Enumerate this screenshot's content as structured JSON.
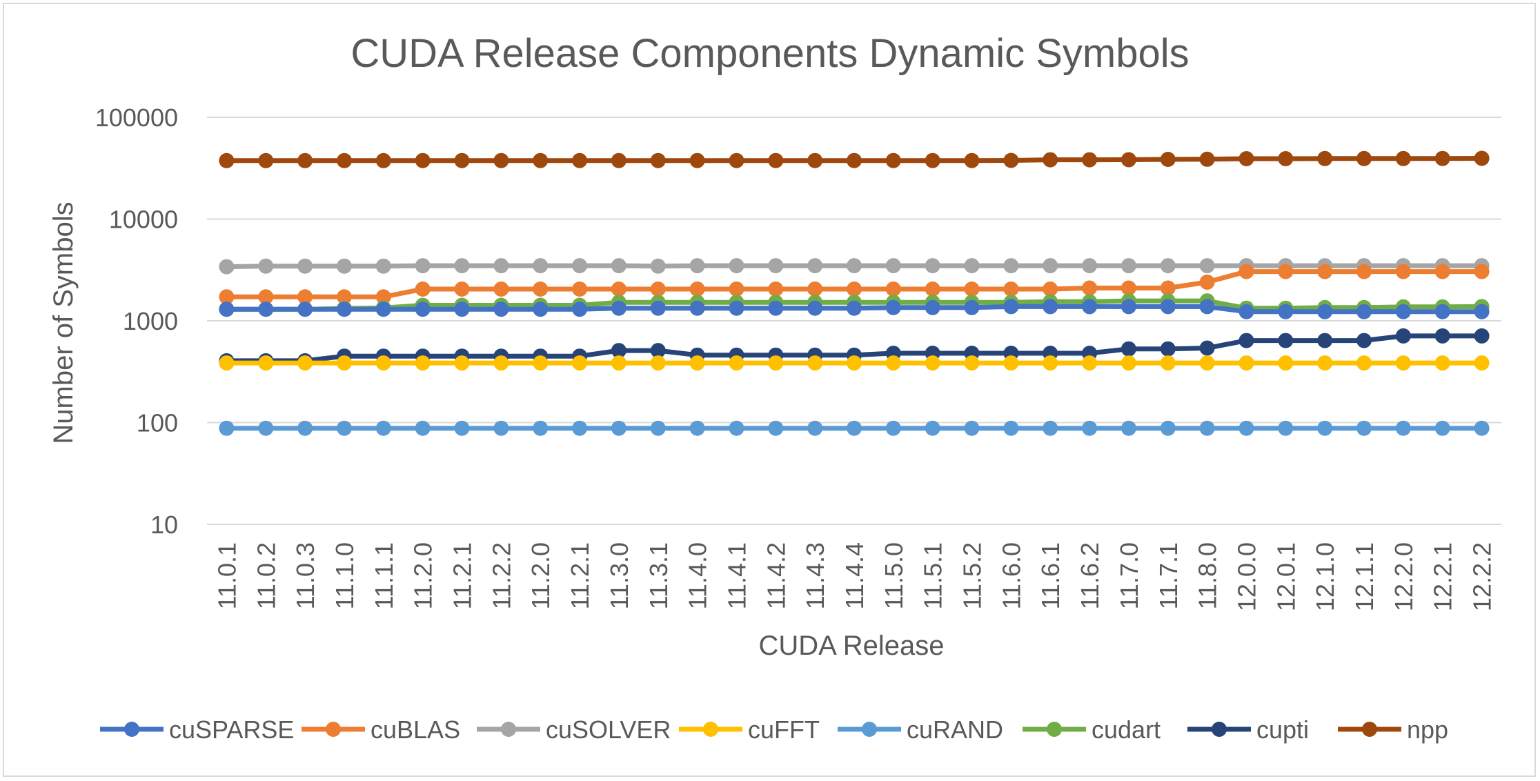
{
  "chart_data": {
    "type": "line",
    "title": "CUDA Release Components Dynamic Symbols",
    "xlabel": "CUDA Release",
    "ylabel": "Number of Symbols",
    "y_scale": "log",
    "ylim": [
      10,
      100000
    ],
    "y_ticks": [
      "10",
      "100",
      "1000",
      "10000",
      "100000"
    ],
    "grid": true,
    "legend_position": "bottom",
    "categories": [
      "11.0.1",
      "11.0.2",
      "11.0.3",
      "11.1.0",
      "11.1.1",
      "11.2.0",
      "11.2.1",
      "11.2.2",
      "11.2.0",
      "11.2.1",
      "11.3.0",
      "11.3.1",
      "11.4.0",
      "11.4.1",
      "11.4.2",
      "11.4.3",
      "11.4.4",
      "11.5.0",
      "11.5.1",
      "11.5.2",
      "11.6.0",
      "11.6.1",
      "11.6.2",
      "11.7.0",
      "11.7.1",
      "11.8.0",
      "12.0.0",
      "12.0.1",
      "12.1.0",
      "12.1.1",
      "12.2.0",
      "12.2.1",
      "12.2.2"
    ],
    "series": [
      {
        "name": "npp",
        "color": "#9e480e",
        "values": [
          37500,
          37500,
          37500,
          37500,
          37500,
          37600,
          37600,
          37600,
          37600,
          37600,
          37600,
          37600,
          37600,
          37600,
          37600,
          37600,
          37600,
          37600,
          37600,
          37600,
          37700,
          38200,
          38200,
          38300,
          38600,
          38700,
          39200,
          39200,
          39300,
          39300,
          39300,
          39400,
          39500
        ]
      },
      {
        "name": "cuSOLVER",
        "color": "#a5a5a5",
        "values": [
          3400,
          3450,
          3450,
          3450,
          3450,
          3480,
          3480,
          3480,
          3480,
          3480,
          3480,
          3450,
          3480,
          3480,
          3480,
          3480,
          3480,
          3480,
          3480,
          3480,
          3480,
          3480,
          3480,
          3480,
          3480,
          3480,
          3480,
          3480,
          3480,
          3480,
          3480,
          3480,
          3480
        ]
      },
      {
        "name": "cuBLAS",
        "color": "#ed7d31",
        "values": [
          1720,
          1720,
          1720,
          1720,
          1720,
          2050,
          2050,
          2050,
          2050,
          2050,
          2050,
          2050,
          2050,
          2050,
          2050,
          2050,
          2050,
          2050,
          2050,
          2050,
          2050,
          2050,
          2100,
          2100,
          2100,
          2400,
          3050,
          3050,
          3050,
          3050,
          3050,
          3050,
          3050
        ]
      },
      {
        "name": "cudart",
        "color": "#70ad47",
        "values": [
          1300,
          1300,
          1300,
          1320,
          1340,
          1420,
          1420,
          1420,
          1420,
          1420,
          1520,
          1520,
          1520,
          1520,
          1520,
          1520,
          1520,
          1520,
          1520,
          1520,
          1520,
          1540,
          1540,
          1570,
          1570,
          1570,
          1330,
          1330,
          1350,
          1350,
          1370,
          1370,
          1380
        ]
      },
      {
        "name": "cuSPARSE",
        "color": "#4472c4",
        "values": [
          1300,
          1300,
          1300,
          1300,
          1300,
          1300,
          1300,
          1300,
          1300,
          1300,
          1330,
          1330,
          1330,
          1330,
          1330,
          1330,
          1330,
          1350,
          1350,
          1350,
          1380,
          1380,
          1380,
          1380,
          1380,
          1380,
          1230,
          1230,
          1230,
          1230,
          1230,
          1230,
          1230
        ]
      },
      {
        "name": "cupti",
        "color": "#264478",
        "values": [
          405,
          405,
          405,
          450,
          450,
          450,
          450,
          450,
          450,
          450,
          510,
          510,
          460,
          460,
          460,
          460,
          460,
          480,
          480,
          480,
          480,
          480,
          480,
          530,
          530,
          540,
          640,
          640,
          640,
          640,
          710,
          710,
          710
        ]
      },
      {
        "name": "cuFFT",
        "color": "#ffc000",
        "values": [
          385,
          385,
          385,
          385,
          385,
          385,
          385,
          385,
          385,
          385,
          385,
          385,
          385,
          385,
          385,
          385,
          385,
          385,
          385,
          385,
          385,
          385,
          385,
          385,
          385,
          385,
          385,
          385,
          385,
          385,
          385,
          385,
          385
        ]
      },
      {
        "name": "cuRAND",
        "color": "#5b9bd5",
        "values": [
          88,
          88,
          88,
          88,
          88,
          88,
          88,
          88,
          88,
          88,
          88,
          88,
          88,
          88,
          88,
          88,
          88,
          88,
          88,
          88,
          88,
          88,
          88,
          88,
          88,
          88,
          88,
          88,
          88,
          88,
          88,
          88,
          88
        ]
      }
    ],
    "legend_order": [
      "cuSPARSE",
      "cuBLAS",
      "cuSOLVER",
      "cuFFT",
      "cuRAND",
      "cudart",
      "cupti",
      "npp"
    ]
  }
}
